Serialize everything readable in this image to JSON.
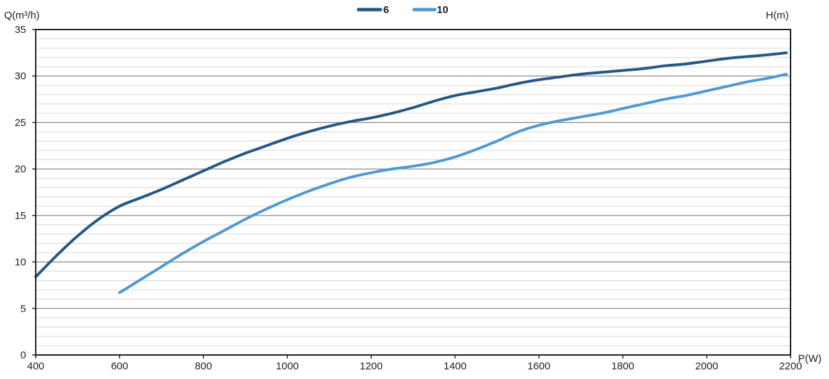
{
  "chart_data": {
    "type": "line",
    "ylabel_left": "Q(m³/h)",
    "ylabel_right": "H(m)",
    "xlabel": "P(W)",
    "xlim": [
      400,
      2200
    ],
    "ylim": [
      0,
      35
    ],
    "x_ticks": [
      400,
      600,
      800,
      1000,
      1200,
      1400,
      1600,
      1800,
      2000,
      2200
    ],
    "y_ticks": [
      0,
      5,
      10,
      15,
      20,
      25,
      30,
      35
    ],
    "minor_y_step": 1,
    "grid": true,
    "legend_position": "top-center",
    "series": [
      {
        "name": "6",
        "color": "#245887",
        "x": [
          400,
          450,
          500,
          550,
          600,
          650,
          700,
          750,
          800,
          850,
          900,
          950,
          1000,
          1050,
          1100,
          1150,
          1200,
          1250,
          1300,
          1350,
          1400,
          1450,
          1500,
          1550,
          1600,
          1650,
          1700,
          1750,
          1800,
          1850,
          1900,
          1950,
          2000,
          2050,
          2100,
          2150,
          2190
        ],
        "values": [
          8.4,
          10.7,
          12.8,
          14.6,
          16.0,
          16.9,
          17.8,
          18.8,
          19.8,
          20.8,
          21.7,
          22.5,
          23.3,
          24.0,
          24.6,
          25.1,
          25.5,
          26.0,
          26.6,
          27.3,
          27.9,
          28.3,
          28.7,
          29.2,
          29.6,
          29.9,
          30.2,
          30.4,
          30.6,
          30.8,
          31.1,
          31.3,
          31.6,
          31.9,
          32.1,
          32.3,
          32.5
        ]
      },
      {
        "name": "10",
        "color": "#4f9ad4",
        "x": [
          600,
          650,
          700,
          750,
          800,
          850,
          900,
          950,
          1000,
          1050,
          1100,
          1150,
          1200,
          1250,
          1300,
          1350,
          1400,
          1450,
          1500,
          1550,
          1600,
          1650,
          1700,
          1750,
          1800,
          1850,
          1900,
          1950,
          2000,
          2050,
          2100,
          2150,
          2190
        ],
        "values": [
          6.7,
          8.1,
          9.5,
          10.9,
          12.2,
          13.4,
          14.6,
          15.7,
          16.7,
          17.6,
          18.4,
          19.1,
          19.6,
          20.0,
          20.3,
          20.7,
          21.3,
          22.1,
          23.0,
          24.0,
          24.7,
          25.2,
          25.6,
          26.0,
          26.5,
          27.0,
          27.5,
          27.9,
          28.4,
          28.9,
          29.4,
          29.8,
          30.2
        ]
      }
    ]
  }
}
